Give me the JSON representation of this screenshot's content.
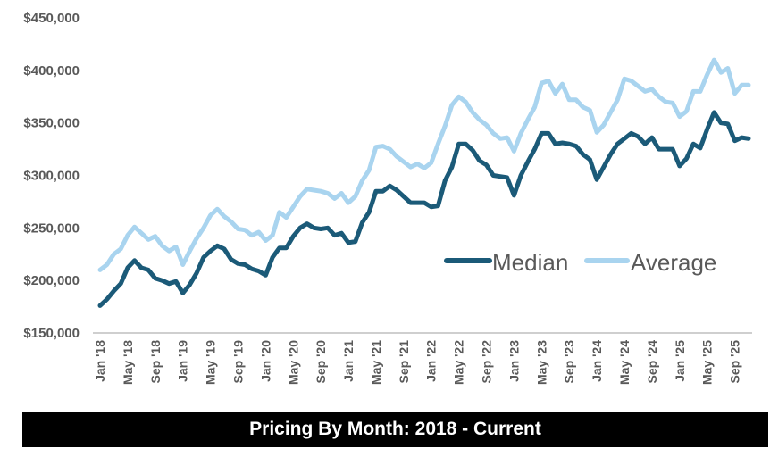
{
  "chart_data": {
    "type": "line",
    "title": "Pricing By Month: 2018 - Current",
    "xlabel": "",
    "ylabel": "",
    "ylim": [
      150000,
      450000
    ],
    "yticks": [
      "$450,000",
      "$400,000",
      "$350,000",
      "$300,000",
      "$250,000",
      "$200,000",
      "$150,000"
    ],
    "ytick_values": [
      450000,
      400000,
      350000,
      300000,
      250000,
      200000,
      150000
    ],
    "xtick_labels": [
      "Jan '18",
      "May '18",
      "Sep '18",
      "Jan '19",
      "May '19",
      "Sep '19",
      "Jan '20",
      "May '20",
      "Sep '20",
      "Jan '21",
      "May '21",
      "Sep '21",
      "Jan '22",
      "May '22",
      "Sep '22",
      "Jan '23",
      "May '23",
      "Sep '23",
      "Jan '24",
      "May '24",
      "Sep '24",
      "Jan '25",
      "May '25",
      "Sep '25"
    ],
    "grid": false,
    "legend_position": "center-right",
    "series": [
      {
        "name": "Median",
        "color": "#1b5a78",
        "values": [
          176000,
          182000,
          190000,
          197000,
          212000,
          219000,
          212000,
          210000,
          202000,
          200000,
          197000,
          199000,
          188000,
          196000,
          207000,
          222000,
          228000,
          233000,
          230000,
          220000,
          216000,
          215000,
          211000,
          209000,
          205000,
          222000,
          231000,
          231000,
          242000,
          250000,
          254000,
          250000,
          249000,
          250000,
          243000,
          245000,
          236000,
          237000,
          255000,
          265000,
          285000,
          285000,
          290000,
          286000,
          280000,
          274000,
          274000,
          274000,
          270000,
          271000,
          295000,
          308000,
          330000,
          330000,
          324000,
          314000,
          310000,
          300000,
          299000,
          298000,
          281000,
          300000,
          313000,
          325000,
          340000,
          340000,
          330000,
          331000,
          330000,
          328000,
          320000,
          315000,
          296000,
          308000,
          320000,
          330000,
          335000,
          340000,
          337000,
          330000,
          336000,
          325000,
          325000,
          325000,
          309000,
          316000,
          330000,
          326000,
          344000,
          360000,
          350000,
          349000,
          333000,
          336000,
          335000
        ]
      },
      {
        "name": "Average",
        "color": "#a9d4ef",
        "values": [
          210000,
          215000,
          225000,
          230000,
          243000,
          251000,
          245000,
          239000,
          242000,
          233000,
          228000,
          232000,
          215000,
          228000,
          240000,
          250000,
          262000,
          268000,
          261000,
          256000,
          249000,
          248000,
          243000,
          246000,
          238000,
          243000,
          265000,
          260000,
          270000,
          280000,
          287000,
          286000,
          285000,
          283000,
          278000,
          283000,
          274000,
          280000,
          295000,
          305000,
          327000,
          328000,
          325000,
          318000,
          313000,
          308000,
          311000,
          307000,
          312000,
          330000,
          347000,
          367000,
          375000,
          370000,
          360000,
          353000,
          348000,
          340000,
          335000,
          336000,
          323000,
          340000,
          353000,
          365000,
          388000,
          390000,
          378000,
          387000,
          372000,
          372000,
          365000,
          362000,
          341000,
          348000,
          360000,
          372000,
          392000,
          390000,
          385000,
          380000,
          382000,
          375000,
          370000,
          369000,
          356000,
          361000,
          380000,
          380000,
          396000,
          410000,
          398000,
          402000,
          378000,
          386000,
          386000
        ]
      }
    ]
  }
}
